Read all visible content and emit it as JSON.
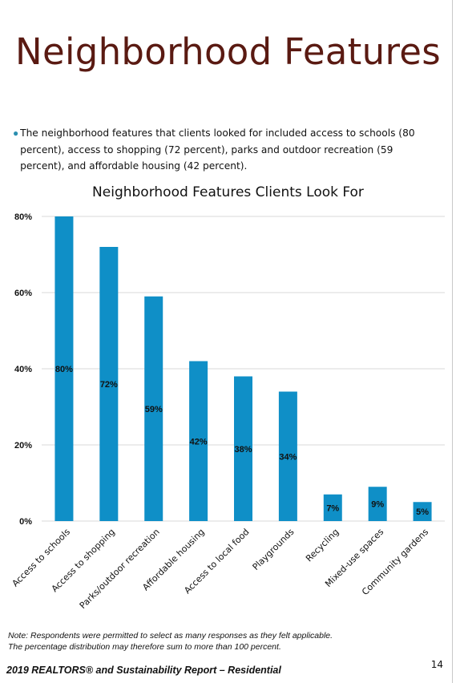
{
  "slide": {
    "title": "Neighborhood Features",
    "bullet": "The neighborhood features that clients looked for included access to schools (80 percent), access to shopping (72 percent), parks and outdoor recreation (59 percent), and affordable housing (42 percent).",
    "note_line1": "Note: Respondents were permitted to select as many responses as they felt applicable.",
    "note_line2": "The percentage distribution may therefore sum to more than 100 percent.",
    "footer": "2019 REALTORS® and Sustainability Report – Residential",
    "page_number": "14"
  },
  "chart_data": {
    "type": "bar",
    "title": "Neighborhood Features Clients Look For",
    "categories": [
      "Access to schools",
      "Access to shopping",
      "Parks/outdoor recreation",
      "Affordable housing",
      "Access to local food",
      "Playgrounds",
      "Recycling",
      "Mixed-use spaces",
      "Community gardens"
    ],
    "values": [
      80,
      72,
      59,
      42,
      38,
      34,
      7,
      9,
      5
    ],
    "data_labels": [
      "80%",
      "72%",
      "59%",
      "42%",
      "38%",
      "34%",
      "7%",
      "9%",
      "5%"
    ],
    "yticks": [
      "0%",
      "20%",
      "40%",
      "60%",
      "80%"
    ],
    "ylim": [
      0,
      80
    ],
    "grid": true,
    "bar_color": "#0f8fc7"
  }
}
